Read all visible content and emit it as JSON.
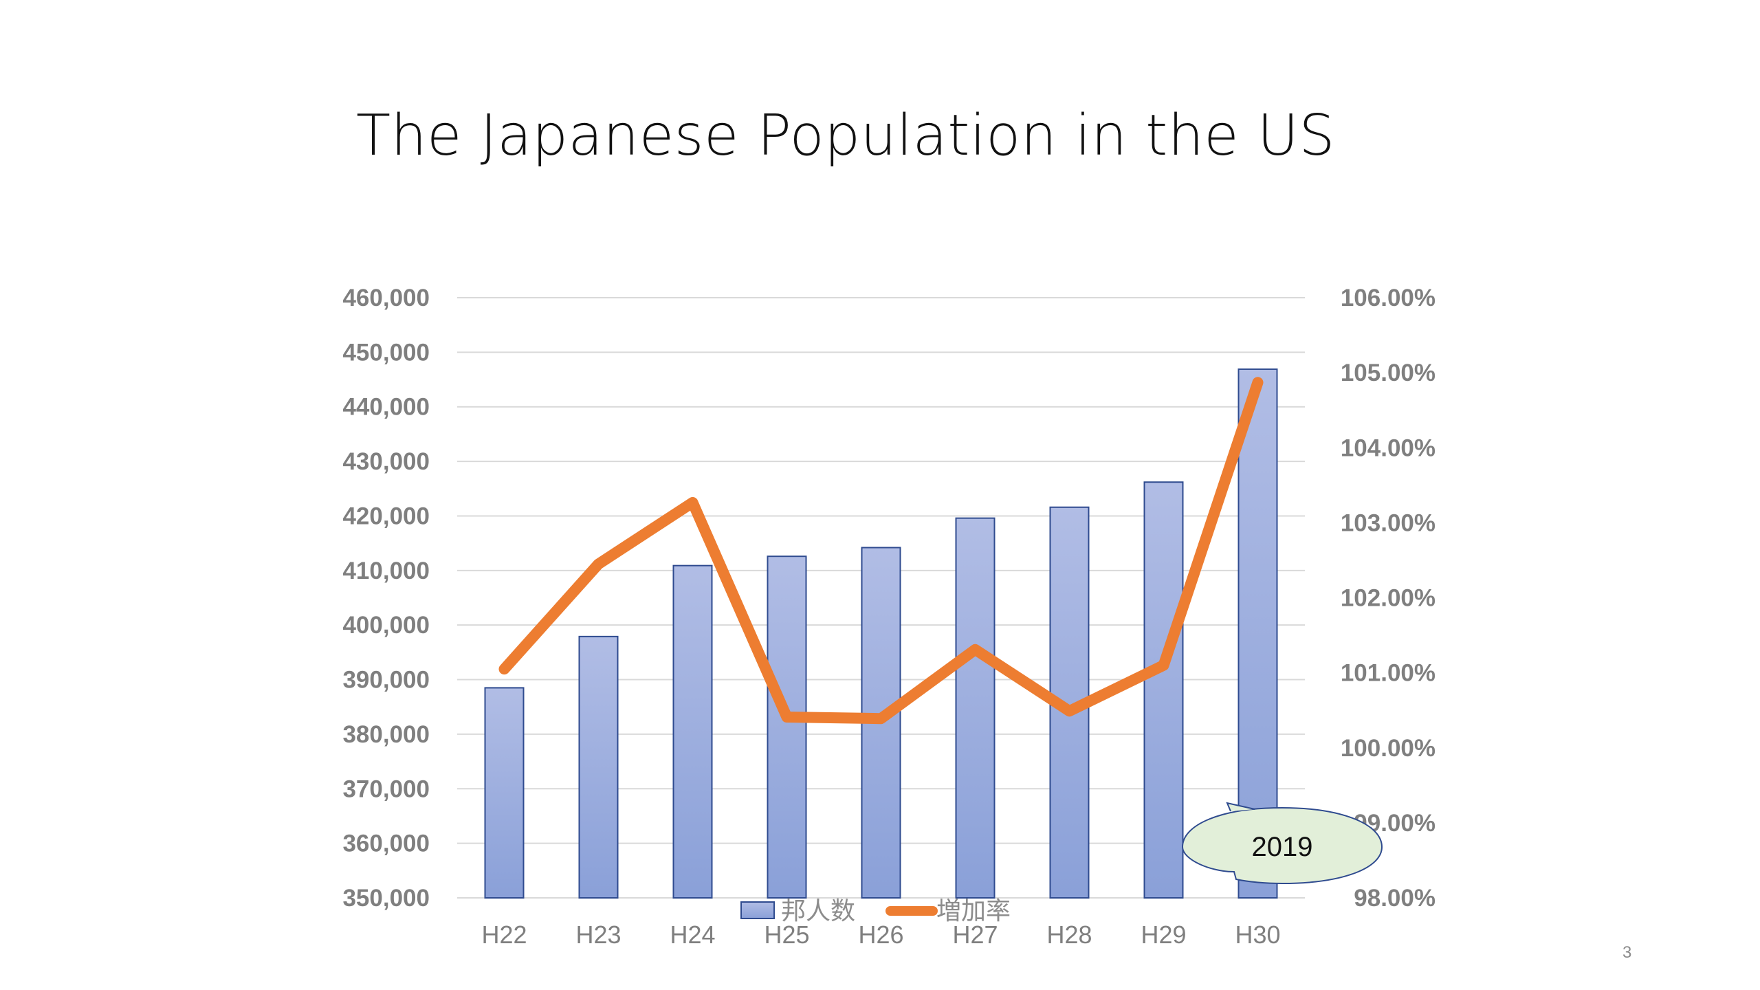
{
  "slide": {
    "title": "The Japanese Population in the US",
    "page_number": "3"
  },
  "callout": {
    "text": "2019"
  },
  "colors": {
    "bar_fill_top": "#b1bde5",
    "bar_fill_bottom": "#8aa0d8",
    "bar_stroke": "#2f4b8f",
    "line": "#ed7d31",
    "grid": "#d9d9d9",
    "callout_fill": "#e2efd9",
    "callout_stroke": "#2f4b8f"
  },
  "chart_data": {
    "type": "bar",
    "title": "",
    "categories": [
      "H22",
      "H23",
      "H24",
      "H25",
      "H26",
      "H27",
      "H28",
      "H29",
      "H30"
    ],
    "series": [
      {
        "name": "邦人数",
        "type": "bar",
        "axis": "left",
        "values": [
          388500,
          397900,
          410900,
          412600,
          414200,
          419600,
          421600,
          426200,
          446900
        ]
      },
      {
        "name": "増加率",
        "type": "line",
        "axis": "right",
        "values": [
          101.05,
          102.45,
          103.27,
          100.41,
          100.39,
          101.31,
          100.49,
          101.1,
          104.87
        ]
      }
    ],
    "y_left": {
      "min": 350000,
      "max": 460000,
      "step": 10000,
      "tick_labels": [
        "350,000",
        "360,000",
        "370,000",
        "380,000",
        "390,000",
        "400,000",
        "410,000",
        "420,000",
        "430,000",
        "440,000",
        "450,000",
        "460,000"
      ]
    },
    "y_right": {
      "min": 98,
      "max": 106,
      "step": 1,
      "tick_labels": [
        "98.00%",
        "99.00%",
        "100.00%",
        "101.00%",
        "102.00%",
        "103.00%",
        "104.00%",
        "105.00%",
        "106.00%"
      ]
    },
    "grid": true,
    "legend_position": "bottom"
  }
}
